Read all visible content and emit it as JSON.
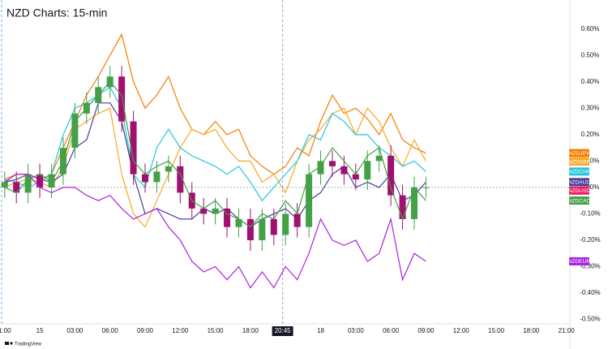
{
  "chart_data": {
    "type": "line",
    "title": "NZD Charts: 15-min",
    "watermark": "TradingView",
    "x": [
      0,
      1,
      2,
      3,
      4,
      5,
      6,
      7,
      8,
      9,
      10,
      11,
      12,
      13,
      14,
      15,
      16,
      17,
      18,
      19,
      20,
      21,
      22,
      23,
      24,
      25,
      26,
      27,
      28,
      29,
      30,
      31,
      32,
      33,
      34,
      35,
      36
    ],
    "xlim": [
      -0.4,
      48.3
    ],
    "xticks": [
      {
        "value": 0,
        "label": "1:00"
      },
      {
        "value": 3,
        "label": "15"
      },
      {
        "value": 6,
        "label": "03:00"
      },
      {
        "value": 9,
        "label": "06:00"
      },
      {
        "value": 12,
        "label": "09:00"
      },
      {
        "value": 15,
        "label": "12:00"
      },
      {
        "value": 18,
        "label": "15:00"
      },
      {
        "value": 21,
        "label": "18:00"
      },
      {
        "value": 27,
        "label": "18"
      },
      {
        "value": 30,
        "label": "03:00"
      },
      {
        "value": 33,
        "label": "06:00"
      },
      {
        "value": 36,
        "label": "09:00"
      },
      {
        "value": 39,
        "label": "12:00"
      },
      {
        "value": 42,
        "label": "15:00"
      },
      {
        "value": 45,
        "label": "18:00"
      },
      {
        "value": 48,
        "label": "21:00"
      }
    ],
    "crosshair": {
      "value": 23.75,
      "label": "20:45"
    },
    "ylim": [
      -0.52,
      0.71
    ],
    "yticks": [
      {
        "value": 0.6,
        "label": "0.60%"
      },
      {
        "value": 0.5,
        "label": "0.50%"
      },
      {
        "value": 0.4,
        "label": "0.40%"
      },
      {
        "value": 0.3,
        "label": "0.30%"
      },
      {
        "value": 0.2,
        "label": "0.20%"
      },
      {
        "value": 0.1,
        "label": "0.10%"
      },
      {
        "value": 0,
        "label": "0.00%"
      },
      {
        "value": -0.1,
        "label": "-0.10%"
      },
      {
        "value": -0.2,
        "label": "-0.20%"
      },
      {
        "value": -0.3,
        "label": "-0.30%"
      },
      {
        "value": -0.4,
        "label": "-0.40%"
      },
      {
        "value": -0.5,
        "label": "-0.50%"
      }
    ],
    "series": [
      {
        "name": "NZDJPY",
        "color": "#f57c00",
        "values": [
          0.03,
          0.05,
          0.05,
          0.03,
          0.05,
          0.15,
          0.25,
          0.35,
          0.42,
          0.5,
          0.58,
          0.4,
          0.3,
          0.35,
          0.42,
          0.3,
          0.22,
          0.2,
          0.25,
          0.2,
          0.22,
          0.12,
          0.08,
          0.05,
          0.08,
          0.15,
          0.12,
          0.25,
          0.35,
          0.28,
          0.3,
          0.26,
          0.2,
          0.28,
          0.18,
          0.15,
          0.13
        ]
      },
      {
        "name": "NZDGBP",
        "color": "#f9a825",
        "values": [
          0,
          0.02,
          0.03,
          0.02,
          0,
          0.08,
          0.22,
          0.25,
          0.28,
          0.3,
          0.05,
          -0.1,
          -0.15,
          -0.05,
          0.05,
          0.15,
          0.22,
          0.2,
          0.22,
          0.15,
          0.1,
          0.1,
          0.02,
          0.05,
          -0.02,
          0.1,
          0.18,
          0.22,
          0.28,
          0.3,
          0.2,
          0.3,
          0.25,
          0.15,
          0.08,
          0.18,
          0.1
        ]
      },
      {
        "name": "NZDCHF",
        "color": "#26c6da",
        "values": [
          0.03,
          0.02,
          0,
          0.02,
          0.05,
          0.2,
          0.3,
          0.32,
          0.35,
          0.38,
          0.3,
          0.05,
          0,
          0.15,
          0.22,
          0.15,
          0.12,
          0.1,
          0.08,
          0.05,
          0.08,
          0.02,
          -0.05,
          0,
          0.05,
          0.1,
          0.2,
          0.18,
          0.28,
          0.25,
          0.2,
          0.2,
          0.15,
          0.12,
          0.08,
          0.1,
          0.06
        ]
      },
      {
        "name": "NZDAUD",
        "color": "#4a3d9a",
        "values": [
          0.02,
          0.03,
          0.05,
          0.03,
          0.02,
          0.05,
          0.15,
          0.18,
          0.32,
          0.32,
          0.25,
          0.05,
          -0.1,
          -0.08,
          -0.1,
          -0.12,
          -0.12,
          -0.08,
          -0.1,
          -0.08,
          -0.12,
          -0.15,
          -0.12,
          -0.1,
          -0.08,
          -0.12,
          -0.05,
          -0.02,
          0.05,
          0.08,
          0,
          0.02,
          0,
          0.05,
          -0.05,
          -0.03,
          0.02
        ]
      },
      {
        "name": "NZDUSD",
        "kind": "candlestick",
        "color": "#e91e63",
        "up_color": "#43a047",
        "down_color": "#a0106e",
        "open": [
          0,
          0.02,
          -0.02,
          0.05,
          0,
          0.05,
          0.15,
          0.28,
          0.32,
          0.38,
          0.42,
          0.25,
          0.05,
          0.02,
          0.06,
          0.08,
          -0.02,
          -0.08,
          -0.1,
          -0.08,
          -0.15,
          -0.12,
          -0.2,
          -0.12,
          -0.18,
          -0.1,
          -0.15,
          0.05,
          0.1,
          0.08,
          0.05,
          0.03,
          0.1,
          0.12,
          -0.03,
          -0.12,
          0
        ],
        "high": [
          0.06,
          0.06,
          0.09,
          0.09,
          0.09,
          0.19,
          0.32,
          0.36,
          0.42,
          0.46,
          0.46,
          0.29,
          0.09,
          0.1,
          0.12,
          0.12,
          0.02,
          -0.04,
          -0.04,
          -0.04,
          -0.08,
          -0.08,
          -0.08,
          -0.08,
          -0.06,
          -0.06,
          0.09,
          0.14,
          0.14,
          0.12,
          0.09,
          0.14,
          0.16,
          0.16,
          0.01,
          0.04,
          0.04
        ],
        "low": [
          -0.04,
          -0.06,
          -0.06,
          -0.04,
          -0.04,
          0.01,
          0.11,
          0.24,
          0.28,
          0.34,
          0.21,
          0.01,
          -0.02,
          -0.02,
          0.02,
          -0.06,
          -0.12,
          -0.14,
          -0.14,
          -0.19,
          -0.19,
          -0.24,
          -0.24,
          -0.22,
          -0.22,
          -0.19,
          -0.19,
          0.01,
          0.04,
          0.01,
          -0.01,
          -0.01,
          0.06,
          -0.07,
          -0.16,
          -0.16,
          -0.04
        ],
        "close": [
          0.02,
          -0.02,
          0.05,
          0,
          0.05,
          0.15,
          0.28,
          0.32,
          0.38,
          0.42,
          0.25,
          0.05,
          0.02,
          0.06,
          0.08,
          -0.02,
          -0.08,
          -0.1,
          -0.08,
          -0.15,
          -0.12,
          -0.2,
          -0.12,
          -0.18,
          -0.1,
          -0.15,
          0.05,
          0.1,
          0.08,
          0.05,
          0.03,
          0.1,
          0.12,
          -0.03,
          -0.12,
          0,
          0
        ]
      },
      {
        "name": "NZDCAD",
        "color": "#43a047",
        "values": [
          0,
          -0.02,
          0.03,
          0.05,
          0.02,
          0.1,
          0.25,
          0.3,
          0.35,
          0.4,
          0.35,
          0.1,
          0.05,
          0.08,
          0.1,
          0.05,
          -0.05,
          -0.08,
          -0.05,
          -0.1,
          -0.12,
          -0.15,
          -0.1,
          -0.12,
          -0.05,
          -0.1,
          0.05,
          0.08,
          0.15,
          0.1,
          0.05,
          0.12,
          0.15,
          0,
          -0.12,
          0,
          -0.05
        ]
      },
      {
        "name": "NZDEUR",
        "color": "#aa22dd",
        "values": [
          0.02,
          0.05,
          0.05,
          0,
          -0.02,
          0,
          0,
          -0.03,
          -0.05,
          -0.03,
          -0.08,
          -0.12,
          -0.1,
          -0.08,
          -0.15,
          -0.2,
          -0.28,
          -0.32,
          -0.3,
          -0.35,
          -0.3,
          -0.38,
          -0.32,
          -0.38,
          -0.3,
          -0.35,
          -0.25,
          -0.12,
          -0.2,
          -0.22,
          -0.2,
          -0.28,
          -0.25,
          -0.12,
          -0.35,
          -0.25,
          -0.28
        ]
      }
    ]
  }
}
